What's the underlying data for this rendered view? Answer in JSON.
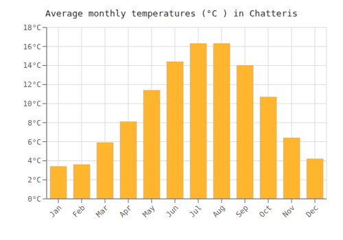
{
  "chart_data": {
    "type": "bar",
    "title": "Average monthly temperatures (°C ) in Chatteris",
    "categories": [
      "Jan",
      "Feb",
      "Mar",
      "Apr",
      "May",
      "Jun",
      "Jul",
      "Aug",
      "Sep",
      "Oct",
      "Nov",
      "Dec"
    ],
    "values": [
      3.4,
      3.6,
      5.9,
      8.1,
      11.4,
      14.4,
      16.3,
      16.3,
      14.0,
      10.7,
      6.4,
      4.2
    ],
    "color": "#FFB52E",
    "ylim": [
      0,
      18
    ],
    "yticks": [
      {
        "value": 0,
        "label": "0°C"
      },
      {
        "value": 2,
        "label": "2°C"
      },
      {
        "value": 4,
        "label": "4°C"
      },
      {
        "value": 6,
        "label": "6°C"
      },
      {
        "value": 8,
        "label": "8°C"
      },
      {
        "value": 10,
        "label": "10°C"
      },
      {
        "value": 12,
        "label": "12°C"
      },
      {
        "value": 14,
        "label": "14°C"
      },
      {
        "value": 16,
        "label": "16°C"
      },
      {
        "value": 18,
        "label": "18°C"
      }
    ],
    "grid": true
  }
}
